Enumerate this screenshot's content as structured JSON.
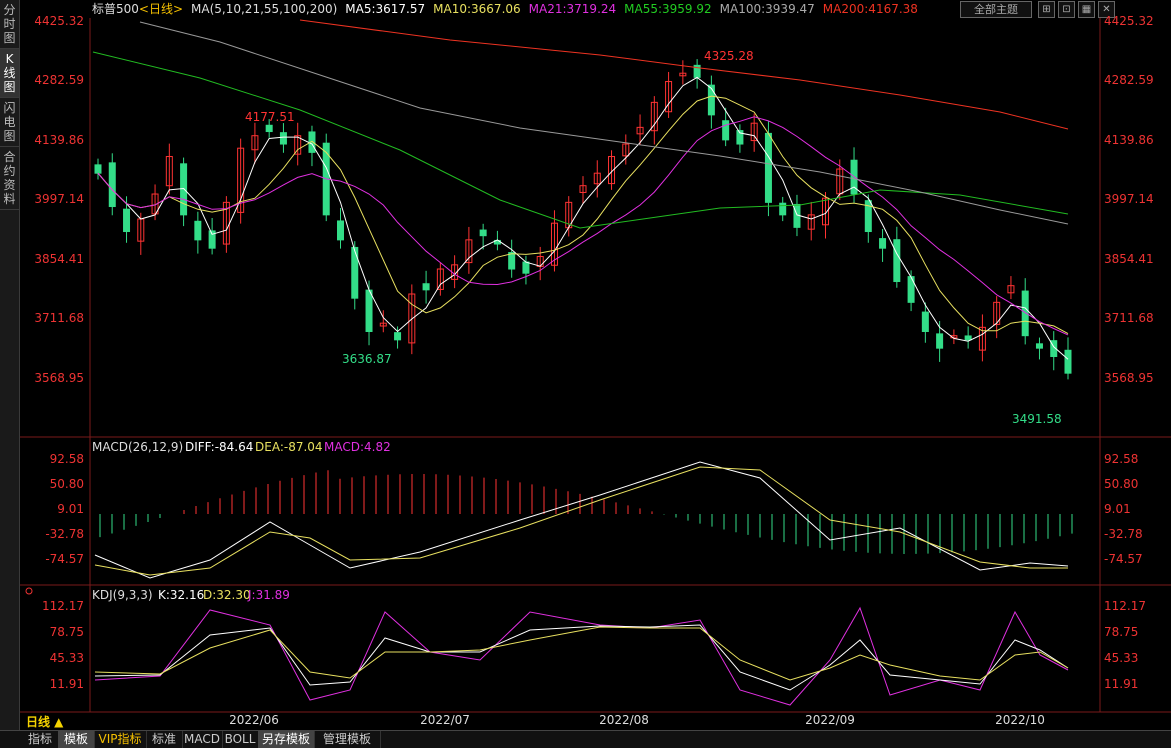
{
  "left_tabs": [
    {
      "label": "分时图"
    },
    {
      "label": "K线图"
    },
    {
      "label": "闪电图"
    },
    {
      "label": "合约资料"
    }
  ],
  "header": {
    "symbol": "标普500",
    "period_tag": "<日线>",
    "ma_label": "MA(5,10,21,55,100,200)",
    "ma5": "MA5:3617.57",
    "ma10": "MA10:3667.06",
    "ma21": "MA21:3719.24",
    "ma55": "MA55:3959.92",
    "ma100": "MA100:3939.47",
    "ma200": "MA200:4167.38"
  },
  "toolbar": {
    "theme_label": "全部主题",
    "btn1": "⊞",
    "btn2": "⊡",
    "btn3": "▦",
    "btn4": "✕"
  },
  "colors": {
    "up": "#ff3333",
    "down": "#33dd88",
    "ma5": "#ffffff",
    "ma10": "#e8e060",
    "ma21": "#e030e0",
    "ma55": "#22bb22",
    "ma100": "#999999",
    "ma200": "#ee3322",
    "axis": "#ee3333"
  },
  "price_axis": [
    "4425.32",
    "4282.59",
    "4139.86",
    "3997.14",
    "3854.41",
    "3711.68",
    "3568.95"
  ],
  "macd": {
    "title": "MACD(26,12,9)",
    "diff": "DIFF:-84.64",
    "dea": "DEA:-87.04",
    "macd": "MACD:4.82",
    "axis": [
      "92.58",
      "50.80",
      "9.01",
      "-32.78",
      "-74.57"
    ]
  },
  "kdj": {
    "title": "KDJ(9,3,3)",
    "k": "K:32.16",
    "d": "D:32.30",
    "j": "J:31.89",
    "axis": [
      "112.17",
      "78.75",
      "45.33",
      "11.91"
    ]
  },
  "annotations": {
    "high1": "4177.51",
    "low1": "3636.87",
    "high2": "4325.28",
    "low2": "3491.58"
  },
  "dates": [
    "2022/06",
    "2022/07",
    "2022/08",
    "2022/09",
    "2022/10"
  ],
  "period_label": "日线 ▲",
  "bottom_tabs": [
    {
      "label": "指标"
    },
    {
      "label": "模板"
    },
    {
      "label": "VIP指标"
    },
    {
      "label": "标准"
    },
    {
      "label": "MACD"
    },
    {
      "label": "BOLL"
    },
    {
      "label": "另存模板"
    },
    {
      "label": "管理模板"
    }
  ],
  "chart_data": {
    "type": "candlestick",
    "price_range": [
      3491.58,
      4425.32
    ],
    "close_path": [
      4060,
      3980,
      3920,
      3950,
      4010,
      4100,
      3960,
      3900,
      3880,
      3990,
      4120,
      4150,
      4160,
      4130,
      4150,
      4110,
      3960,
      3900,
      3760,
      3680,
      3700,
      3660,
      3770,
      3780,
      3830,
      3840,
      3900,
      3910,
      3890,
      3830,
      3820,
      3860,
      3940,
      3990,
      4030,
      4060,
      4100,
      4130,
      4170,
      4230,
      4280,
      4300,
      4290,
      4200,
      4140,
      4130,
      4180,
      3990,
      3960,
      3930,
      3960,
      4000,
      4070,
      4010,
      3920,
      3880,
      3800,
      3750,
      3680,
      3640,
      3670,
      3660,
      3690,
      3750,
      3790,
      3670,
      3640,
      3620,
      3580
    ]
  }
}
